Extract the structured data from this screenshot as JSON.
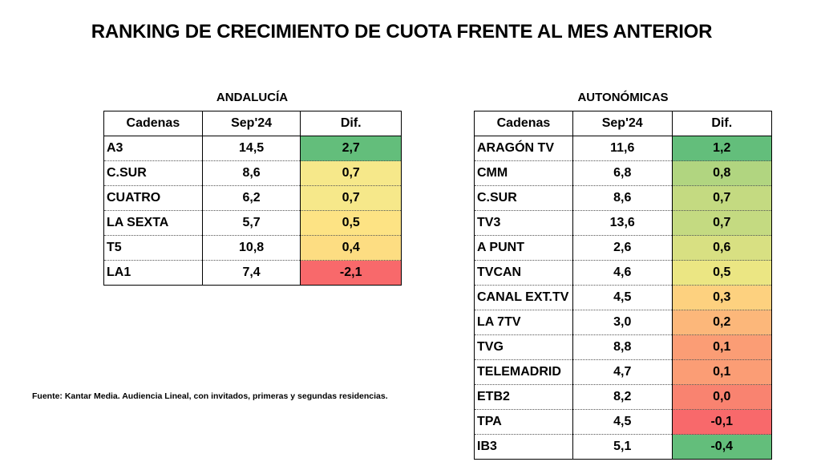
{
  "title": "RANKING DE CRECIMIENTO DE CUOTA FRENTE AL MES ANTERIOR",
  "andalucia": {
    "heading": "ANDALUCÍA",
    "columns": [
      "Cadenas",
      "Sep'24",
      "Dif."
    ],
    "rows": [
      {
        "name": "A3",
        "sep": "14,5",
        "dif": "2,7",
        "color": "#63be7b"
      },
      {
        "name": "C.SUR",
        "sep": "8,6",
        "dif": "0,7",
        "color": "#f6e88a"
      },
      {
        "name": "CUATRO",
        "sep": "6,2",
        "dif": "0,7",
        "color": "#f6e88a"
      },
      {
        "name": "LA SEXTA",
        "sep": "5,7",
        "dif": "0,5",
        "color": "#fde384"
      },
      {
        "name": "T5",
        "sep": "10,8",
        "dif": "0,4",
        "color": "#fddd82"
      },
      {
        "name": "LA1",
        "sep": "7,4",
        "dif": "-2,1",
        "color": "#f8696b"
      }
    ]
  },
  "autonomicas": {
    "heading": "AUTONÓMICAS",
    "columns": [
      "Cadenas",
      "Sep'24",
      "Dif."
    ],
    "rows": [
      {
        "name": "ARAGÓN TV",
        "sep": "11,6",
        "dif": "1,2",
        "color": "#63be7b"
      },
      {
        "name": "CMM",
        "sep": "6,8",
        "dif": "0,8",
        "color": "#b1d580"
      },
      {
        "name": "C.SUR",
        "sep": "8,6",
        "dif": "0,7",
        "color": "#c4da81"
      },
      {
        "name": "TV3",
        "sep": "13,6",
        "dif": "0,7",
        "color": "#c4da81"
      },
      {
        "name": "A PUNT",
        "sep": "2,6",
        "dif": "0,6",
        "color": "#d8e082"
      },
      {
        "name": "TVCAN",
        "sep": "4,6",
        "dif": "0,5",
        "color": "#ebe683"
      },
      {
        "name": "CANAL EXT.TV",
        "sep": "4,5",
        "dif": "0,3",
        "color": "#fdd17f"
      },
      {
        "name": "LA 7TV",
        "sep": "3,0",
        "dif": "0,2",
        "color": "#fcb77a"
      },
      {
        "name": "TVG",
        "sep": "8,8",
        "dif": "0,1",
        "color": "#fb9d75"
      },
      {
        "name": "TELEMADRID",
        "sep": "4,7",
        "dif": "0,1",
        "color": "#fb9d75"
      },
      {
        "name": "ETB2",
        "sep": "8,2",
        "dif": "0,0",
        "color": "#f98370"
      },
      {
        "name": "TPA",
        "sep": "4,5",
        "dif": "-0,1",
        "color": "#f8696b"
      },
      {
        "name": "IB3",
        "sep": "5,1",
        "dif": "-0,4",
        "color": "#63be7b"
      }
    ]
  },
  "footnote": "Fuente: Kantar Media. Audiencia Lineal, con invitados, primeras y segundas residencias."
}
